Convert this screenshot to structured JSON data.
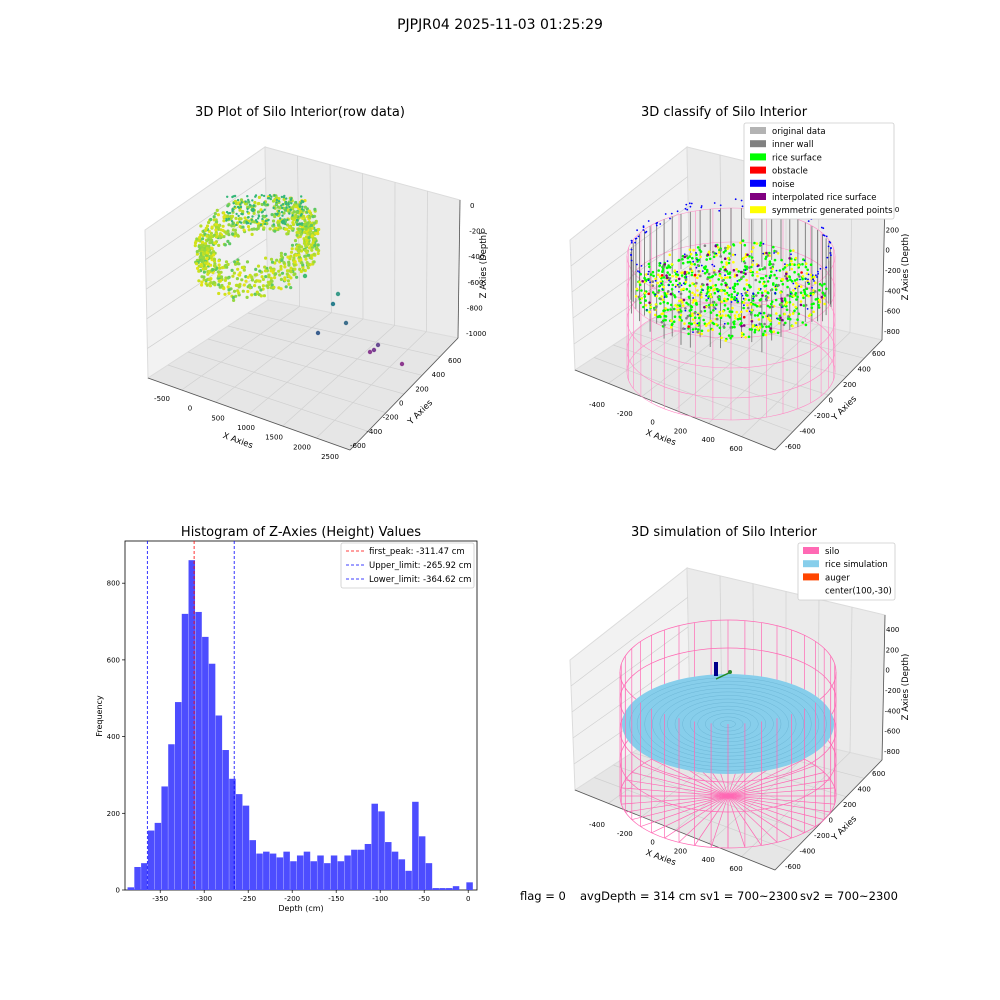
{
  "figure": {
    "suptitle": "PJPJR04 2025-11-03 01:25:29",
    "footer": {
      "flag": "flag = 0",
      "avg_depth": "avgDepth = 314 cm",
      "sv1": "sv1 = 700~2300",
      "sv2": "sv2 = 700~2300"
    }
  },
  "colors": {
    "original_data": "#b3b3b3",
    "inner_wall": "#808080",
    "rice_surface": "#00ff00",
    "obstacle": "#ff0000",
    "noise": "#0000ff",
    "interpolated_rice_surface": "#800080",
    "symmetric_generated_points": "#ffff00",
    "silo": "#ff69b4",
    "rice_simulation": "#87ceeb",
    "auger": "#ff4500",
    "hist_bar": "#4d4dff",
    "first_peak_line": "#ff0000",
    "limit_line": "#0000ff"
  },
  "chart_data": [
    {
      "type": "scatter",
      "title": "3D Plot of Silo Interior(row data)",
      "xlabel": "X Axies",
      "ylabel": "Y Axies",
      "zlabel": "Z Axies (Depth)",
      "x_ticks": [
        "-500",
        "0",
        "500",
        "1000",
        "1500",
        "2000",
        "2500"
      ],
      "y_ticks": [
        "600",
        "400",
        "200",
        "0",
        "-200",
        "-400",
        "-600"
      ],
      "z_ticks": [
        "0",
        "-200",
        "-400",
        "-600",
        "-800",
        "-1000"
      ],
      "colormap": "viridis"
    },
    {
      "type": "scatter",
      "title": "3D classify of Silo Interior",
      "xlabel": "X Axies",
      "ylabel": "Y Axies",
      "zlabel": "Z Axies (Depth)",
      "x_ticks": [
        "-400",
        "-200",
        "0",
        "200",
        "400",
        "600"
      ],
      "y_ticks": [
        "600",
        "400",
        "200",
        "0",
        "-200",
        "-400",
        "-600"
      ],
      "z_ticks": [
        "400",
        "200",
        "0",
        "-200",
        "-400",
        "-600",
        "-800"
      ],
      "legend_position": "top-right",
      "legend": [
        {
          "label": "original data",
          "color": "#b3b3b3"
        },
        {
          "label": "inner wall",
          "color": "#808080"
        },
        {
          "label": "rice surface",
          "color": "#00ff00"
        },
        {
          "label": "obstacle",
          "color": "#ff0000"
        },
        {
          "label": "noise",
          "color": "#0000ff"
        },
        {
          "label": "interpolated rice surface",
          "color": "#800080"
        },
        {
          "label": "symmetric generated points",
          "color": "#ffff00"
        }
      ]
    },
    {
      "type": "bar",
      "title": "Histogram of Z-Axies (Height) Values",
      "xlabel": "Depth (cm)",
      "ylabel": "Frequency",
      "xlim": [
        -390,
        10
      ],
      "ylim": [
        0,
        910
      ],
      "x_ticks": [
        -350,
        -300,
        -250,
        -200,
        -150,
        -100,
        -50,
        0
      ],
      "y_ticks": [
        0,
        200,
        400,
        600,
        800
      ],
      "bin_width": 7.7,
      "bins": [
        [
          -387.1,
          7
        ],
        [
          -379.4,
          60
        ],
        [
          -371.7,
          70
        ],
        [
          -364.0,
          155
        ],
        [
          -356.3,
          175
        ],
        [
          -348.6,
          270
        ],
        [
          -340.9,
          380
        ],
        [
          -333.2,
          490
        ],
        [
          -325.5,
          720
        ],
        [
          -317.8,
          860
        ],
        [
          -310.1,
          725
        ],
        [
          -302.4,
          660
        ],
        [
          -294.7,
          590
        ],
        [
          -287.0,
          455
        ],
        [
          -279.3,
          365
        ],
        [
          -271.6,
          290
        ],
        [
          -263.9,
          250
        ],
        [
          -256.2,
          220
        ],
        [
          -248.5,
          130
        ],
        [
          -240.8,
          95
        ],
        [
          -233.1,
          100
        ],
        [
          -225.4,
          95
        ],
        [
          -217.7,
          85
        ],
        [
          -210.0,
          100
        ],
        [
          -202.3,
          75
        ],
        [
          -194.6,
          90
        ],
        [
          -186.9,
          100
        ],
        [
          -179.2,
          75
        ],
        [
          -171.5,
          90
        ],
        [
          -163.8,
          70
        ],
        [
          -156.1,
          90
        ],
        [
          -148.4,
          75
        ],
        [
          -140.7,
          90
        ],
        [
          -133.0,
          105
        ],
        [
          -125.3,
          105
        ],
        [
          -117.6,
          120
        ],
        [
          -109.9,
          225
        ],
        [
          -102.2,
          205
        ],
        [
          -94.5,
          125
        ],
        [
          -86.8,
          100
        ],
        [
          -79.1,
          80
        ],
        [
          -71.4,
          50
        ],
        [
          -63.7,
          230
        ],
        [
          -56.0,
          140
        ],
        [
          -48.3,
          70
        ],
        [
          -40.6,
          5
        ],
        [
          -32.9,
          5
        ],
        [
          -25.2,
          5
        ],
        [
          -17.5,
          10
        ],
        [
          -9.8,
          0
        ],
        [
          -2.1,
          20
        ]
      ],
      "vlines": [
        {
          "label": "first_peak: -311.47 cm",
          "x": -311.47,
          "color": "#ff0000"
        },
        {
          "label": "Upper_limit: -265.92 cm",
          "x": -265.92,
          "color": "#0000ff"
        },
        {
          "label": "Lower_limit: -364.62 cm",
          "x": -364.62,
          "color": "#0000ff"
        }
      ],
      "legend_position": "top-right"
    },
    {
      "type": "scatter",
      "title": "3D simulation of Silo Interior",
      "xlabel": "X Axies",
      "ylabel": "Y Axies",
      "zlabel": "Z Axies (Depth)",
      "x_ticks": [
        "-400",
        "-200",
        "0",
        "200",
        "400",
        "600"
      ],
      "y_ticks": [
        "600",
        "400",
        "200",
        "0",
        "-200",
        "-400",
        "-600"
      ],
      "z_ticks": [
        "400",
        "200",
        "0",
        "-200",
        "-400",
        "-600",
        "-800"
      ],
      "legend_position": "top-right",
      "legend": [
        {
          "label": "silo",
          "color": "#ff69b4"
        },
        {
          "label": "rice simulation",
          "color": "#87ceeb"
        },
        {
          "label": "auger",
          "color": "#ff4500"
        },
        {
          "label": "center(100,-30)",
          "color": ""
        }
      ]
    }
  ]
}
